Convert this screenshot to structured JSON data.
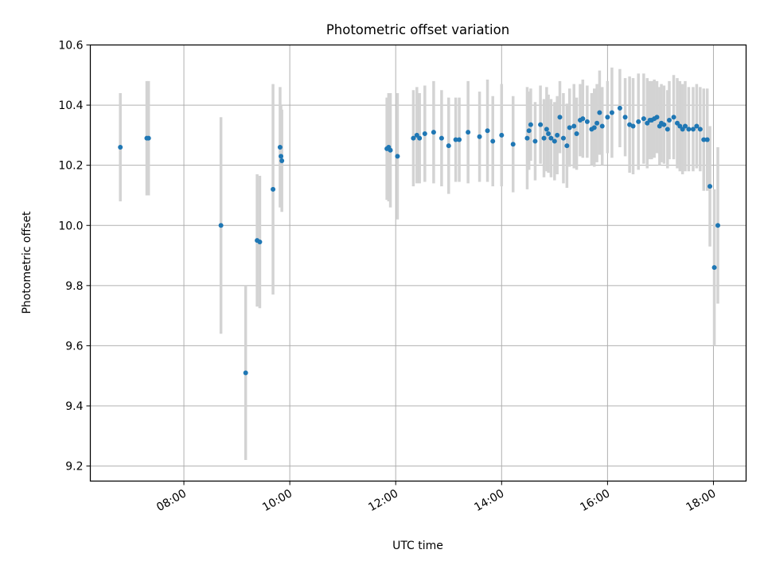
{
  "chart_data": {
    "type": "scatter",
    "title": "Photometric offset variation",
    "xlabel": "UTC time",
    "ylabel": "Photometric offset",
    "xlim": [
      "06:14",
      "18:37"
    ],
    "ylim": [
      9.15,
      10.6
    ],
    "grid": true,
    "x_ticks": [
      "08:00",
      "10:00",
      "12:00",
      "14:00",
      "16:00",
      "18:00"
    ],
    "y_ticks": [
      "9.2",
      "9.4",
      "9.6",
      "9.8",
      "10.0",
      "10.2",
      "10.4",
      "10.6"
    ],
    "point_color": "#1f77b4",
    "errorbar_color": "#d3d3d3",
    "series": [
      {
        "x": [
          "06:48",
          "07:18",
          "07:20",
          "08:42",
          "09:10",
          "09:23",
          "09:26",
          "09:41",
          "09:49",
          "09:50",
          "09:51",
          "11:50",
          "11:52",
          "11:54",
          "12:02",
          "12:20",
          "12:24",
          "12:27",
          "12:33",
          "12:43",
          "12:52",
          "13:00",
          "13:08",
          "13:12",
          "13:22",
          "13:35",
          "13:44",
          "13:50",
          "14:00",
          "14:13",
          "14:29",
          "14:31",
          "14:33",
          "14:38",
          "14:44",
          "14:48",
          "14:51",
          "14:53",
          "14:56",
          "15:00",
          "15:03",
          "15:06",
          "15:10",
          "15:14",
          "15:17",
          "15:22",
          "15:25",
          "15:29",
          "15:32",
          "15:37",
          "15:42",
          "15:45",
          "15:48",
          "15:51",
          "15:54",
          "16:00",
          "16:05",
          "16:14",
          "16:20",
          "16:25",
          "16:29",
          "16:35",
          "16:41",
          "16:45",
          "16:48",
          "16:50",
          "16:53",
          "16:56",
          "16:59",
          "17:01",
          "17:04",
          "17:08",
          "17:10",
          "17:15",
          "17:19",
          "17:22",
          "17:25",
          "17:28",
          "17:32",
          "17:37",
          "17:41",
          "17:45",
          "17:49",
          "17:53",
          "17:56",
          "18:01",
          "18:05"
        ],
        "y": [
          10.26,
          10.29,
          10.29,
          10.0,
          9.51,
          9.95,
          9.945,
          10.12,
          10.26,
          10.23,
          10.215,
          10.255,
          10.26,
          10.25,
          10.23,
          10.29,
          10.3,
          10.29,
          10.305,
          10.31,
          10.29,
          10.265,
          10.285,
          10.285,
          10.31,
          10.295,
          10.315,
          10.28,
          10.3,
          10.27,
          10.29,
          10.315,
          10.335,
          10.28,
          10.335,
          10.29,
          10.32,
          10.305,
          10.29,
          10.28,
          10.3,
          10.36,
          10.29,
          10.265,
          10.325,
          10.33,
          10.305,
          10.35,
          10.355,
          10.345,
          10.32,
          10.325,
          10.34,
          10.375,
          10.33,
          10.36,
          10.375,
          10.39,
          10.36,
          10.335,
          10.33,
          10.345,
          10.355,
          10.34,
          10.35,
          10.35,
          10.355,
          10.36,
          10.33,
          10.34,
          10.335,
          10.32,
          10.35,
          10.36,
          10.34,
          10.33,
          10.32,
          10.33,
          10.32,
          10.32,
          10.33,
          10.32,
          10.285,
          10.285,
          10.13,
          9.86,
          10.0
        ],
        "err": [
          0.18,
          0.19,
          0.19,
          0.36,
          0.29,
          0.22,
          0.22,
          0.35,
          0.2,
          0.17,
          0.17,
          0.17,
          0.18,
          0.19,
          0.21,
          0.16,
          0.16,
          0.15,
          0.16,
          0.17,
          0.16,
          0.16,
          0.14,
          0.14,
          0.17,
          0.15,
          0.17,
          0.15,
          0.17,
          0.16,
          0.17,
          0.13,
          0.12,
          0.13,
          0.13,
          0.13,
          0.14,
          0.13,
          0.13,
          0.13,
          0.13,
          0.12,
          0.15,
          0.14,
          0.13,
          0.14,
          0.12,
          0.12,
          0.13,
          0.12,
          0.12,
          0.13,
          0.13,
          0.14,
          0.13,
          0.12,
          0.15,
          0.13,
          0.13,
          0.16,
          0.16,
          0.16,
          0.15,
          0.15,
          0.13,
          0.13,
          0.13,
          0.12,
          0.13,
          0.13,
          0.13,
          0.13,
          0.13,
          0.14,
          0.15,
          0.15,
          0.15,
          0.15,
          0.14,
          0.14,
          0.14,
          0.14,
          0.17,
          0.17,
          0.2,
          0.26,
          0.26
        ]
      }
    ]
  }
}
